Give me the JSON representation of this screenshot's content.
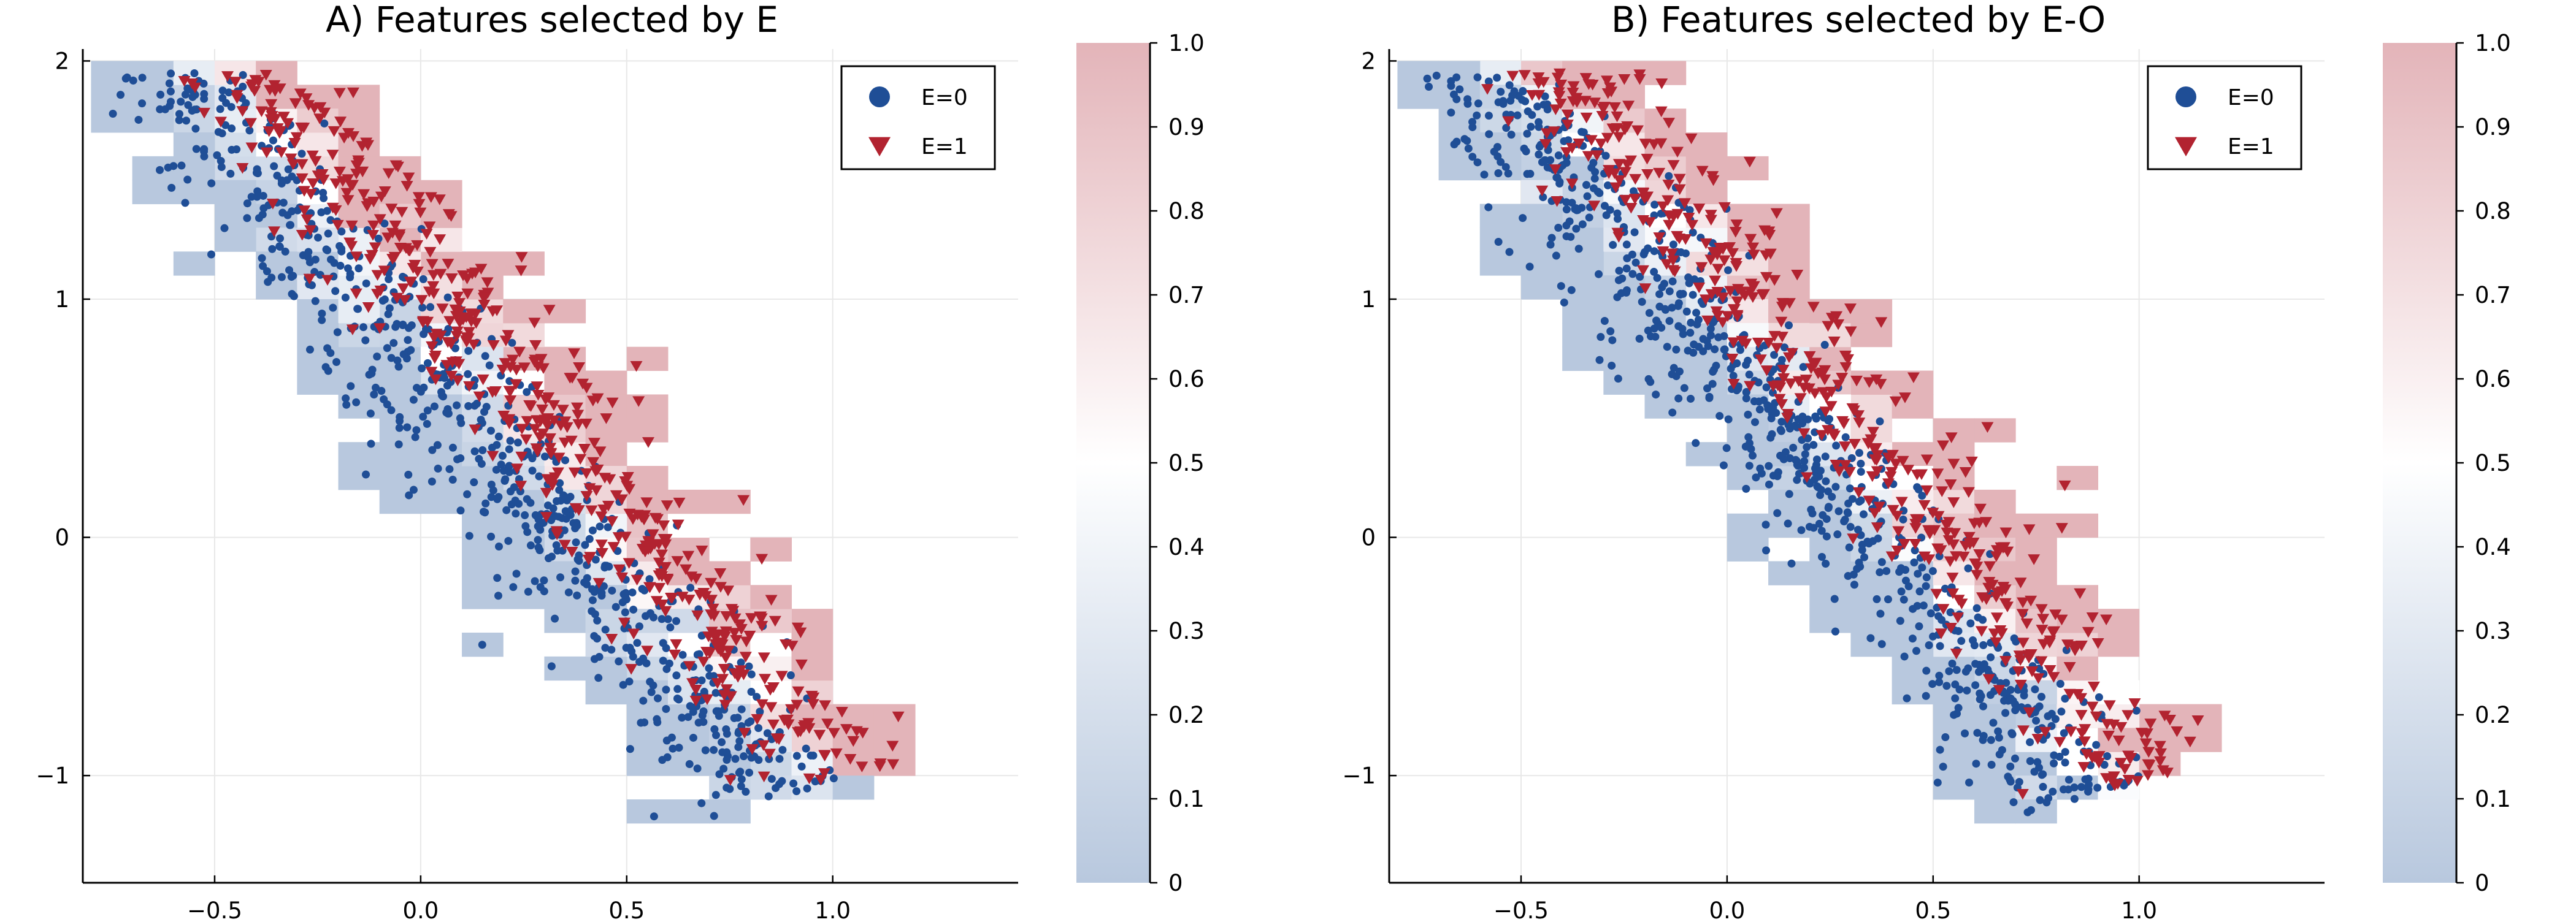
{
  "chart_data": [
    {
      "type": "scatter",
      "title": "A) Features selected by E",
      "xlabel": "",
      "ylabel": "",
      "xlim": [
        -0.82,
        1.45
      ],
      "ylim": [
        -1.45,
        2.05
      ],
      "xticks": [
        -0.5,
        0.0,
        0.5,
        1.0
      ],
      "xtick_labels": [
        "−0.5",
        "0.0",
        "0.5",
        "1.0"
      ],
      "yticks": [
        -1,
        0,
        1,
        2
      ],
      "ytick_labels": [
        "−1",
        "0",
        "1",
        "2"
      ],
      "grid": true,
      "legend_position": "top-right",
      "series": [
        {
          "name": "E=0",
          "marker": "circle",
          "color": "#1f4e96"
        },
        {
          "name": "E=1",
          "marker": "triangle-down",
          "color": "#b22330"
        }
      ],
      "background_heatmap": {
        "bin_size": [
          0.1,
          0.1
        ],
        "value_range": [
          0,
          1
        ],
        "cmap_low": "#b8c8de",
        "cmap_mid": "#ffffff",
        "cmap_high": "#e3b4b9"
      },
      "colorbar": {
        "range": [
          0,
          1
        ],
        "ticks": [
          0.0,
          0.1,
          0.2,
          0.3,
          0.4,
          0.5,
          0.6,
          0.7,
          0.8,
          0.9,
          1.0
        ],
        "tick_labels": [
          "0",
          "0.1",
          "0.2",
          "0.3",
          "0.4",
          "0.5",
          "0.6",
          "0.7",
          "0.8",
          "0.9",
          "1.0"
        ]
      },
      "data_description": "Points distributed along diagonal band from (-0.7, 1.8) to (1.3, -1.35); E=1 points concentrated on upper-right edge of band"
    },
    {
      "type": "scatter",
      "title": "B) Features selected by E-O",
      "xlabel": "",
      "ylabel": "",
      "xlim": [
        -0.82,
        1.45
      ],
      "ylim": [
        -1.45,
        2.05
      ],
      "xticks": [
        -0.5,
        0.0,
        0.5,
        1.0
      ],
      "xtick_labels": [
        "−0.5",
        "0.0",
        "0.5",
        "1.0"
      ],
      "yticks": [
        -1,
        0,
        1,
        2
      ],
      "ytick_labels": [
        "−1",
        "0",
        "1",
        "2"
      ],
      "grid": true,
      "legend_position": "top-right",
      "series": [
        {
          "name": "E=0",
          "marker": "circle",
          "color": "#1f4e96"
        },
        {
          "name": "E=1",
          "marker": "triangle-down",
          "color": "#b22330"
        }
      ],
      "background_heatmap": {
        "bin_size": [
          0.1,
          0.1
        ],
        "value_range": [
          0,
          1
        ],
        "cmap_low": "#b8c8de",
        "cmap_mid": "#ffffff",
        "cmap_high": "#e3b4b9"
      },
      "colorbar": {
        "range": [
          0,
          1
        ],
        "ticks": [
          0.0,
          0.1,
          0.2,
          0.3,
          0.4,
          0.5,
          0.6,
          0.7,
          0.8,
          0.9,
          1.0
        ],
        "tick_labels": [
          "0",
          "0.1",
          "0.2",
          "0.3",
          "0.4",
          "0.5",
          "0.6",
          "0.7",
          "0.8",
          "0.9",
          "1.0"
        ]
      },
      "data_description": "Points distributed along diagonal band from (-0.7, 1.8) to (1.3, -1.35); E=1 points concentrated on upper-right edge of band"
    }
  ]
}
